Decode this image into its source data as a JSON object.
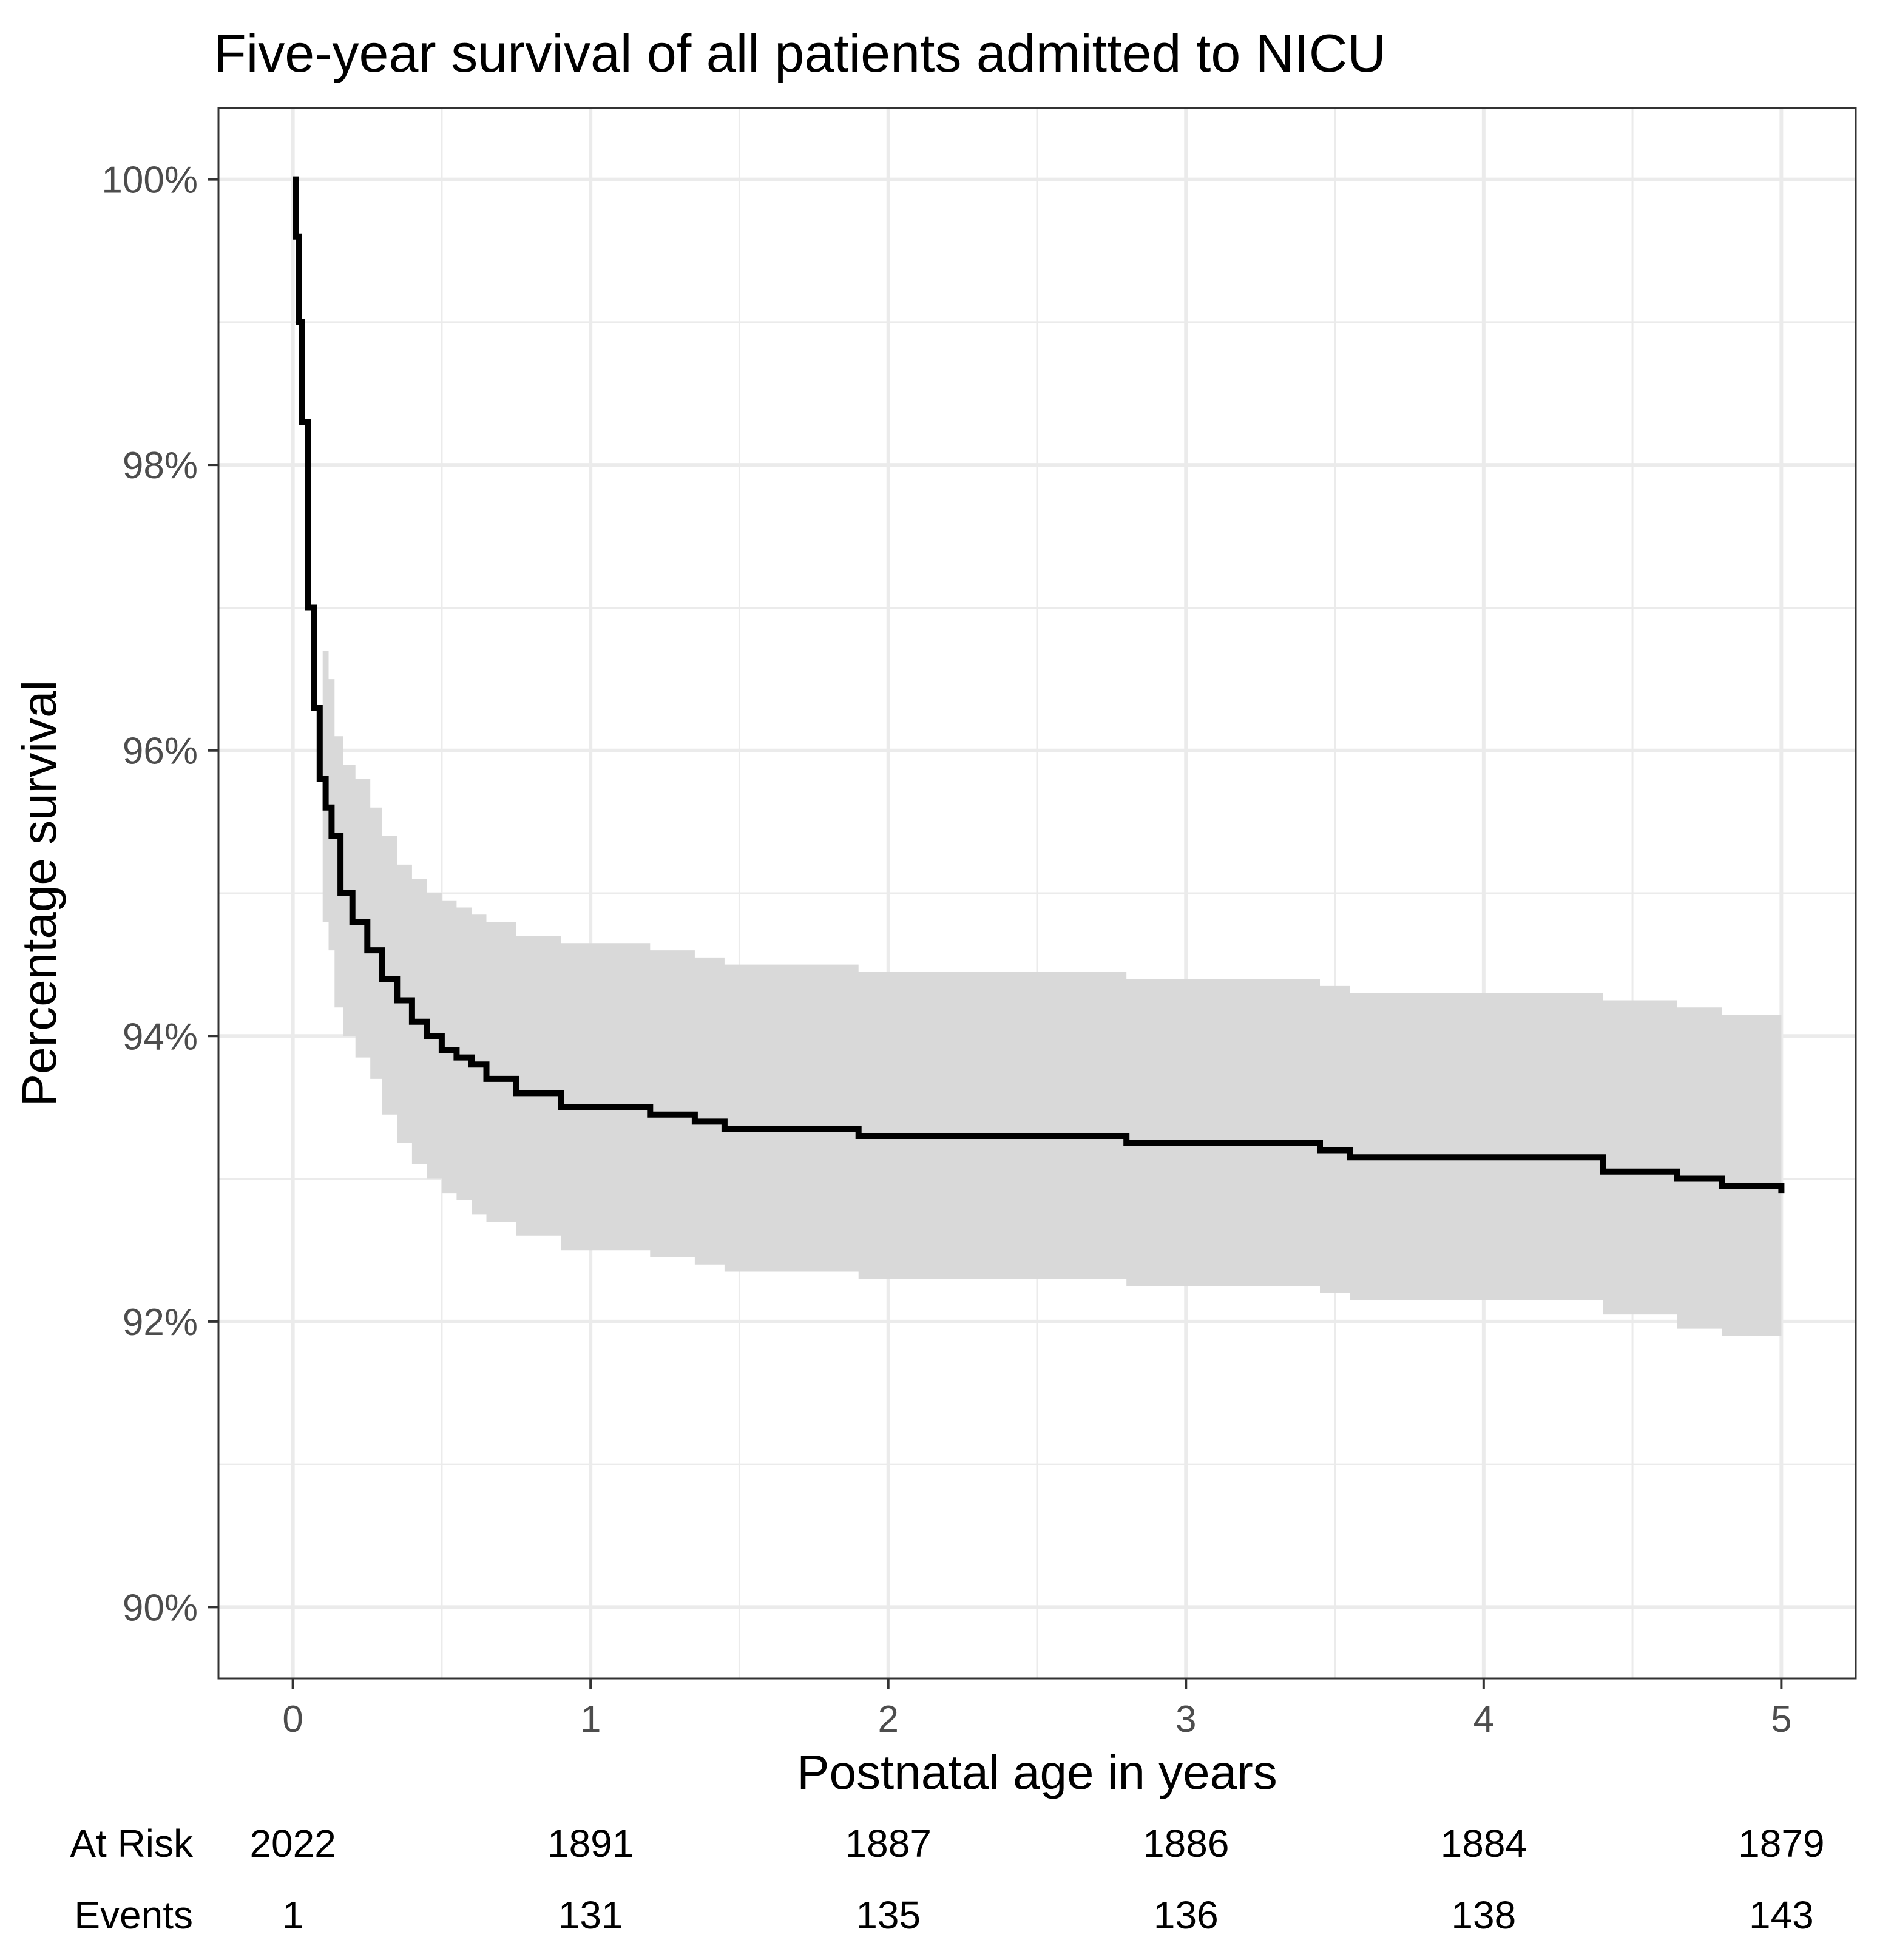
{
  "chart_data": {
    "type": "line",
    "title": "Five-year survival of all patients admitted to NICU",
    "xlabel": "Postnatal age in years",
    "ylabel": "Percentage survival",
    "xlim": [
      -0.25,
      5.25
    ],
    "ylim": [
      89.5,
      100.5
    ],
    "x_ticks": [
      0,
      1,
      2,
      3,
      4,
      5
    ],
    "x_tick_labels": [
      "0",
      "1",
      "2",
      "3",
      "4",
      "5"
    ],
    "y_ticks": [
      90,
      92,
      94,
      96,
      98,
      100
    ],
    "y_tick_labels": [
      "90%",
      "92%",
      "94%",
      "96%",
      "98%",
      "100%"
    ],
    "grid": true,
    "legend": "none",
    "colors": {
      "line": "#000000",
      "ci_band": "#d9d9d9",
      "grid": "#ebebeb",
      "panel_border": "#333333"
    },
    "series": [
      {
        "x": [
          0,
          0.01,
          0.02,
          0.03,
          0.05,
          0.07,
          0.09,
          0.11,
          0.13,
          0.16,
          0.2,
          0.25,
          0.3,
          0.35,
          0.4,
          0.45,
          0.5,
          0.55,
          0.6,
          0.65,
          0.75,
          0.9,
          1.2,
          1.35,
          1.45,
          1.9,
          2.8,
          3.45,
          3.55,
          4.4,
          4.65,
          4.8,
          5
        ],
        "y": [
          100,
          99.6,
          99.0,
          98.3,
          97.0,
          96.3,
          95.8,
          95.6,
          95.4,
          95.0,
          94.8,
          94.6,
          94.4,
          94.25,
          94.1,
          94.0,
          93.9,
          93.85,
          93.8,
          93.7,
          93.6,
          93.5,
          93.45,
          93.4,
          93.35,
          93.3,
          93.25,
          93.2,
          93.15,
          93.05,
          93.0,
          92.95,
          92.9
        ]
      }
    ],
    "ci_band": {
      "x": [
        0.1,
        0.12,
        0.14,
        0.17,
        0.21,
        0.26,
        0.3,
        0.35,
        0.4,
        0.45,
        0.5,
        0.55,
        0.6,
        0.65,
        0.75,
        0.9,
        1.2,
        1.35,
        1.45,
        1.9,
        2.8,
        3.45,
        3.55,
        4.4,
        4.65,
        4.8,
        5
      ],
      "lower": [
        94.8,
        94.6,
        94.2,
        94.0,
        93.85,
        93.7,
        93.45,
        93.25,
        93.1,
        93.0,
        92.9,
        92.85,
        92.75,
        92.7,
        92.6,
        92.5,
        92.45,
        92.4,
        92.35,
        92.3,
        92.25,
        92.2,
        92.15,
        92.05,
        91.95,
        91.9,
        91.85
      ],
      "upper": [
        96.7,
        96.5,
        96.1,
        95.9,
        95.8,
        95.6,
        95.4,
        95.2,
        95.1,
        95.0,
        94.95,
        94.9,
        94.85,
        94.8,
        94.7,
        94.65,
        94.6,
        94.55,
        94.5,
        94.45,
        94.4,
        94.35,
        94.3,
        94.25,
        94.2,
        94.15,
        94.1
      ]
    }
  },
  "risk_table": {
    "row_labels": [
      "At Risk",
      "Events"
    ],
    "x": [
      0,
      1,
      2,
      3,
      4,
      5
    ],
    "at_risk": [
      "2022",
      "1891",
      "1887",
      "1886",
      "1884",
      "1879"
    ],
    "events": [
      "1",
      "131",
      "135",
      "136",
      "138",
      "143"
    ]
  }
}
